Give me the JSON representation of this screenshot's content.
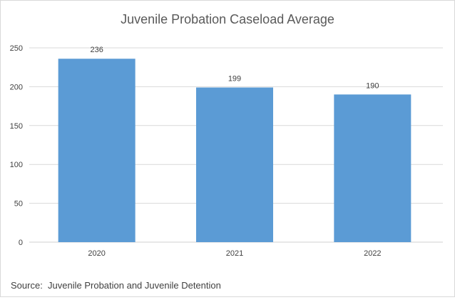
{
  "chart_data": {
    "type": "bar",
    "title": "Juvenile Probation Caseload Average",
    "categories": [
      "2020",
      "2021",
      "2022"
    ],
    "values": [
      236,
      199,
      190
    ],
    "data_labels": [
      "236",
      "199",
      "190"
    ],
    "xlabel": "",
    "ylabel": "",
    "ylim": [
      0,
      250
    ],
    "yticks": [
      0,
      50,
      100,
      150,
      200,
      250
    ],
    "ytick_labels": [
      "0",
      "50",
      "100",
      "150",
      "200",
      "250"
    ],
    "grid": true,
    "legend": "none",
    "bar_color": "#5b9bd5",
    "source_note": "Source:  Juvenile Probation and Juvenile Detention"
  }
}
